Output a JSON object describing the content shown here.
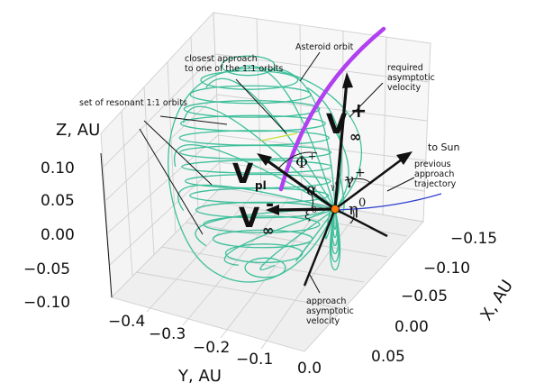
{
  "axes": {
    "z_label": "Z, AU",
    "y_label": "Y, AU",
    "x_label": "X, AU",
    "z_ticks": [
      "0.10",
      "0.05",
      "0.00",
      "−0.05",
      "−0.10"
    ],
    "y_ticks": [
      "−0.4",
      "−0.3",
      "−0.2",
      "−0.1",
      "0.0"
    ],
    "x_ticks": [
      "−0.15",
      "−0.10",
      "−0.05",
      "0.00",
      "0.05"
    ],
    "grid": true
  },
  "annotations": {
    "asteroid_orbit": "Asteroid orbit",
    "closest_line1": "closest approach",
    "closest_line2": "to one of the 1:1 orbits",
    "resonant": "set of resonant 1:1 orbits",
    "required_line1": "required",
    "required_line2": "asymptotic",
    "required_line3": "velocity",
    "to_sun": "to Sun",
    "previous_line1": "previous",
    "previous_line2": "approach",
    "previous_line3": "trajectory",
    "approach_line1": "approach",
    "approach_line2": "asymptotic",
    "approach_line3": "velocity"
  },
  "symbols": {
    "v_inf_plus": "V",
    "v_inf_plus_sub": "∞",
    "v_inf_plus_sup": "+",
    "v_pl": "V",
    "v_pl_sub": "pl",
    "v_inf_minus": "V",
    "v_inf_minus_sub": "∞",
    "v_inf_minus_sup": "-",
    "phi_plus": "Φ",
    "phi_plus_sup": "+",
    "gamma_plus": "γ",
    "gamma_plus_sup": "+",
    "alpha": "α",
    "eta0": "η",
    "eta0_sup": "0",
    "xi0": "ξ",
    "xi0_sup": "0",
    "gamma0": "γ",
    "gamma0_sup": "0"
  },
  "colors": {
    "resonant_orbits": "#3dbf9a",
    "asteroid_orbit": "#b040f0",
    "previous_trajectory": "#2f3fcf",
    "closest_segment": "#c9e03a",
    "planet": "#ff7a00",
    "grid": "#cfcfcf",
    "text": "#111111"
  }
}
